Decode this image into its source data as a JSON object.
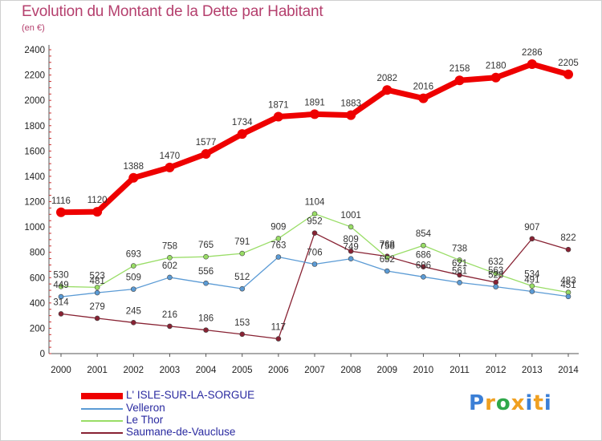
{
  "header": {
    "title": "Evolution du Montant de la Dette par Habitant",
    "unit": "(en €)"
  },
  "chart_data": {
    "type": "line",
    "title": "Evolution du Montant de la Dette par Habitant",
    "subtitle": "(en €)",
    "xlabel": "",
    "ylabel": "",
    "categories": [
      "2000",
      "2001",
      "2002",
      "2003",
      "2004",
      "2005",
      "2006",
      "2007",
      "2008",
      "2009",
      "2010",
      "2011",
      "2012",
      "2013",
      "2014"
    ],
    "y_ticks": [
      "0",
      "200",
      "400",
      "600",
      "800",
      "1000",
      "1200",
      "1400",
      "1600",
      "1800",
      "2000",
      "2200",
      "2400"
    ],
    "ylim": [
      0,
      2400
    ],
    "grid": false,
    "legend_position": "bottom-left",
    "series": [
      {
        "name": "L' ISLE-SUR-LA-SORGUE",
        "color": "#ee0000",
        "values": [
          1116,
          1120,
          1388,
          1470,
          1577,
          1734,
          1871,
          1891,
          1883,
          2082,
          2016,
          2158,
          2180,
          2286,
          2205
        ]
      },
      {
        "name": "Velleron",
        "color": "#5b9bd5",
        "values": [
          449,
          481,
          509,
          602,
          556,
          512,
          763,
          706,
          749,
          652,
          606,
          561,
          528,
          491,
          451
        ]
      },
      {
        "name": "Le Thor",
        "color": "#99dd66",
        "values": [
          530,
          523,
          693,
          758,
          765,
          791,
          909,
          1104,
          1001,
          758,
          854,
          738,
          632,
          534,
          483
        ]
      },
      {
        "name": "Saumane-de-Vaucluse",
        "color": "#882233",
        "values": [
          314,
          279,
          245,
          216,
          186,
          153,
          117,
          952,
          809,
          768,
          686,
          621,
          563,
          907,
          822
        ]
      }
    ]
  },
  "logo": {
    "letters": [
      "P",
      "r",
      "o",
      "x",
      "i",
      "t",
      "i"
    ],
    "colors": [
      "#3b7fd6",
      "#f0a020",
      "#2fa84a",
      "#f0a020",
      "#3b7fd6",
      "#f0a020",
      "#3b7fd6"
    ]
  }
}
